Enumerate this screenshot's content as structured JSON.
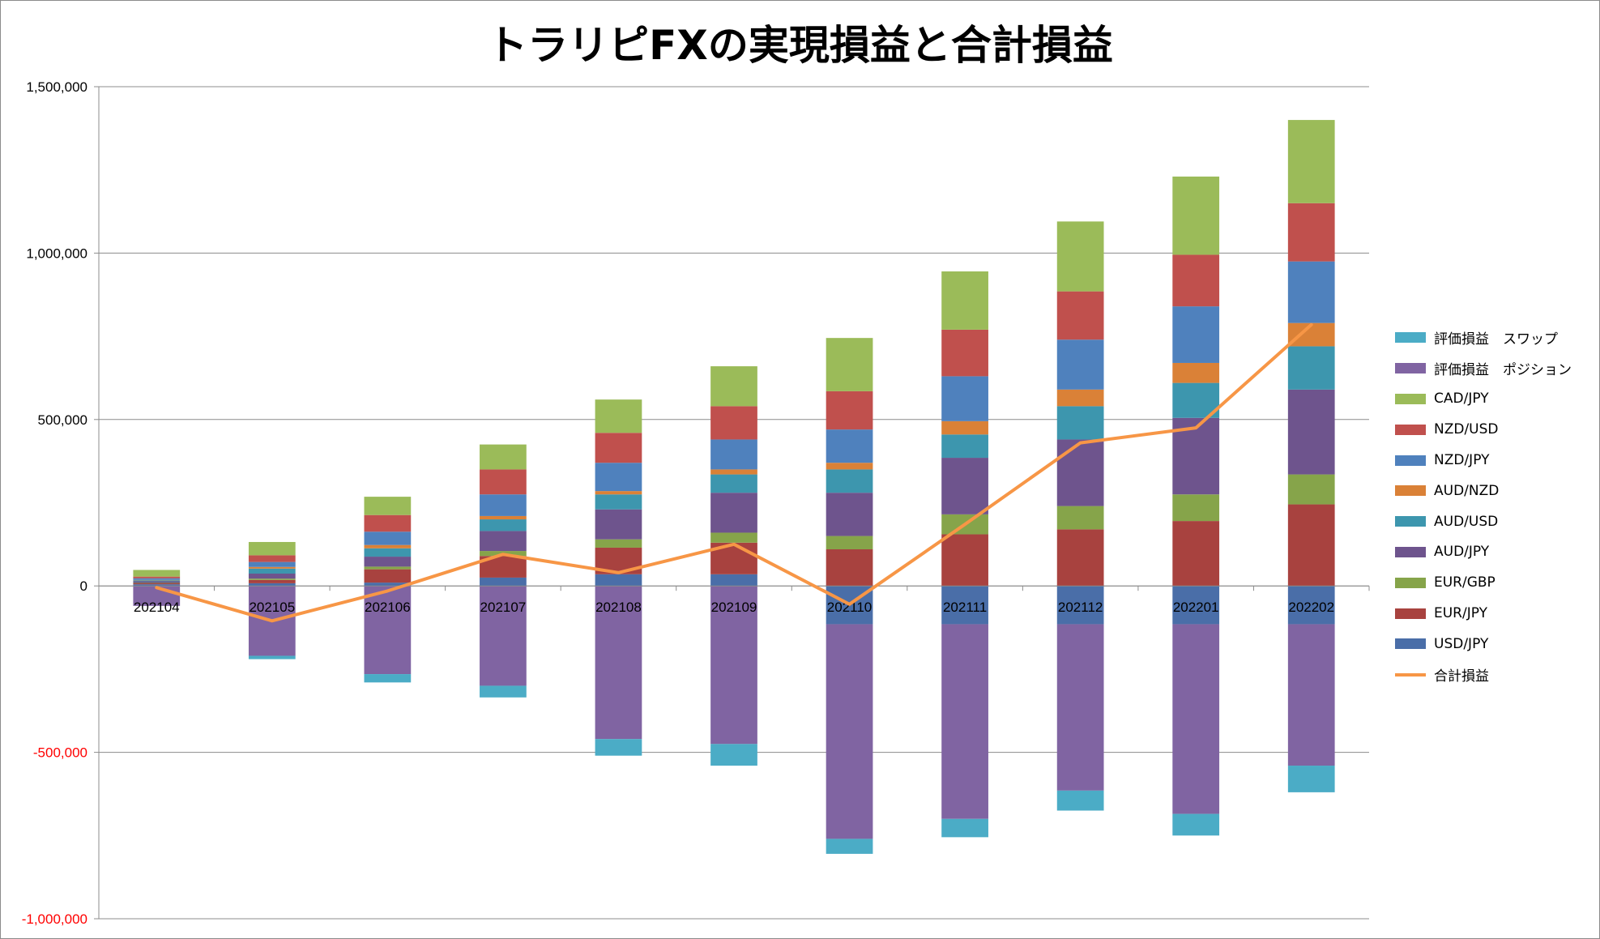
{
  "chart_data": {
    "type": "bar",
    "title": "トラリピFXの実現損益と合計損益",
    "categories": [
      "202104",
      "202105",
      "202106",
      "202107",
      "202108",
      "202109",
      "202110",
      "202111",
      "202112",
      "202201",
      "202202"
    ],
    "ylim": [
      -1000000,
      1500000
    ],
    "yticks": [
      "1,500,000",
      "1,000,000",
      "500,000",
      "0",
      "-500,000",
      "-1,000,000"
    ],
    "ytick_values": [
      1500000,
      1000000,
      500000,
      0,
      -500000,
      -1000000
    ],
    "negative_tick_color": "#ff0000",
    "grid": true,
    "legend_position": "right",
    "stack_order": [
      "USD/JPY",
      "EUR/JPY",
      "EUR/GBP",
      "AUD/JPY",
      "AUD/USD",
      "AUD/NZD",
      "NZD/JPY",
      "NZD/USD",
      "CAD/JPY"
    ],
    "series": [
      {
        "name": "USD/JPY",
        "color": "#4a6ea8",
        "values": [
          5000,
          8000,
          10000,
          25000,
          35000,
          35000,
          -115000,
          -115000,
          -115000,
          -115000,
          -115000
        ]
      },
      {
        "name": "EUR/JPY",
        "color": "#a8423f",
        "values": [
          3000,
          10000,
          40000,
          65000,
          80000,
          95000,
          110000,
          155000,
          170000,
          195000,
          245000
        ]
      },
      {
        "name": "EUR/GBP",
        "color": "#86a44a",
        "values": [
          1000,
          4000,
          8000,
          15000,
          25000,
          30000,
          40000,
          60000,
          70000,
          80000,
          90000
        ]
      },
      {
        "name": "AUD/JPY",
        "color": "#6e548d",
        "values": [
          5000,
          15000,
          30000,
          60000,
          90000,
          120000,
          130000,
          170000,
          200000,
          230000,
          255000
        ]
      },
      {
        "name": "AUD/USD",
        "color": "#3d96ae",
        "values": [
          3000,
          15000,
          25000,
          35000,
          45000,
          55000,
          70000,
          70000,
          100000,
          105000,
          130000
        ]
      },
      {
        "name": "AUD/NZD",
        "color": "#da8137",
        "values": [
          1000,
          5000,
          10000,
          10000,
          10000,
          15000,
          20000,
          40000,
          50000,
          60000,
          70000
        ]
      },
      {
        "name": "NZD/JPY",
        "color": "#4f81bd",
        "values": [
          5000,
          15000,
          40000,
          65000,
          85000,
          90000,
          100000,
          135000,
          150000,
          170000,
          185000
        ]
      },
      {
        "name": "NZD/USD",
        "color": "#c0504d",
        "values": [
          5000,
          20000,
          50000,
          75000,
          90000,
          100000,
          115000,
          140000,
          145000,
          155000,
          175000
        ]
      },
      {
        "name": "CAD/JPY",
        "color": "#9bbb59",
        "values": [
          20000,
          40000,
          55000,
          75000,
          100000,
          120000,
          160000,
          175000,
          210000,
          235000,
          250000
        ]
      },
      {
        "name": "評価損益　ポジション",
        "color": "#8064a2",
        "values": [
          -60000,
          -210000,
          -265000,
          -300000,
          -460000,
          -475000,
          -645000,
          -585000,
          -500000,
          -570000,
          -425000
        ]
      },
      {
        "name": "評価損益　スワップ",
        "color": "#4bacc6",
        "values": [
          0,
          -10000,
          -25000,
          -35000,
          -50000,
          -65000,
          -45000,
          -55000,
          -60000,
          -65000,
          -80000
        ]
      }
    ],
    "line": {
      "name": "合計損益",
      "color": "#f79646",
      "values": [
        -5000,
        -105000,
        -15000,
        95000,
        40000,
        125000,
        -55000,
        185000,
        430000,
        475000,
        785000
      ]
    },
    "legend": [
      "評価損益　スワップ",
      "評価損益　ポジション",
      "CAD/JPY",
      "NZD/USD",
      "NZD/JPY",
      "AUD/NZD",
      "AUD/USD",
      "AUD/JPY",
      "EUR/GBP",
      "EUR/JPY",
      "USD/JPY",
      "合計損益"
    ]
  }
}
